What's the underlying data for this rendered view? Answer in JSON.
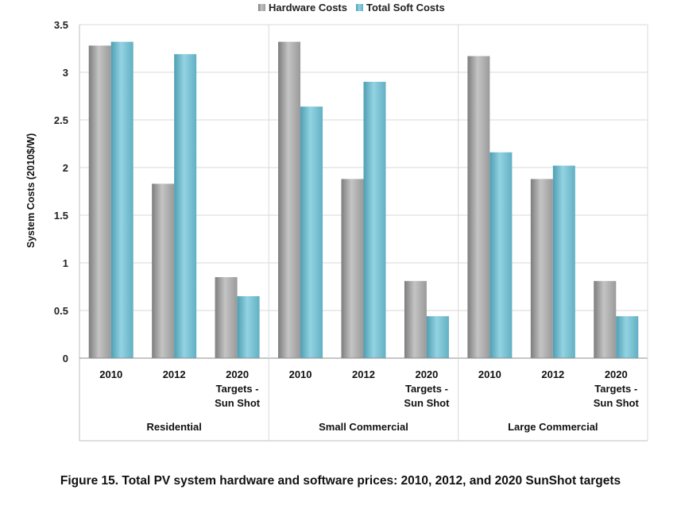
{
  "chart_data": {
    "type": "bar",
    "title": "",
    "ylabel": "System Costs (2010$/W)",
    "xlabel": "",
    "ylim": [
      0,
      3.5
    ],
    "yticks": [
      "0",
      "0.5",
      "1",
      "1.5",
      "2",
      "2.5",
      "3",
      "3.5"
    ],
    "grid": true,
    "legend_position": "top-center",
    "groups": [
      {
        "name": "Residential",
        "categories": [
          [
            "2010"
          ],
          [
            "2012"
          ],
          [
            "2020",
            "Targets -",
            "Sun Shot"
          ]
        ]
      },
      {
        "name": "Small Commercial",
        "categories": [
          [
            "2010"
          ],
          [
            "2012"
          ],
          [
            "2020",
            "Targets -",
            "Sun Shot"
          ]
        ]
      },
      {
        "name": "Large Commercial",
        "categories": [
          [
            "2010"
          ],
          [
            "2012"
          ],
          [
            "2020",
            "Targets -",
            "Sun Shot"
          ]
        ]
      }
    ],
    "series": [
      {
        "name": "Hardware Costs",
        "color": "#9a9a9a",
        "values": [
          3.28,
          1.83,
          0.85,
          3.32,
          1.88,
          0.81,
          3.17,
          1.88,
          0.81
        ]
      },
      {
        "name": "Total Soft Costs",
        "color": "#6fbdd0",
        "values": [
          3.32,
          3.19,
          0.65,
          2.64,
          2.9,
          0.44,
          2.16,
          2.02,
          0.44
        ]
      }
    ]
  },
  "caption": "Figure 15. Total PV system hardware and software prices: 2010, 2012, and 2020 SunShot targets"
}
